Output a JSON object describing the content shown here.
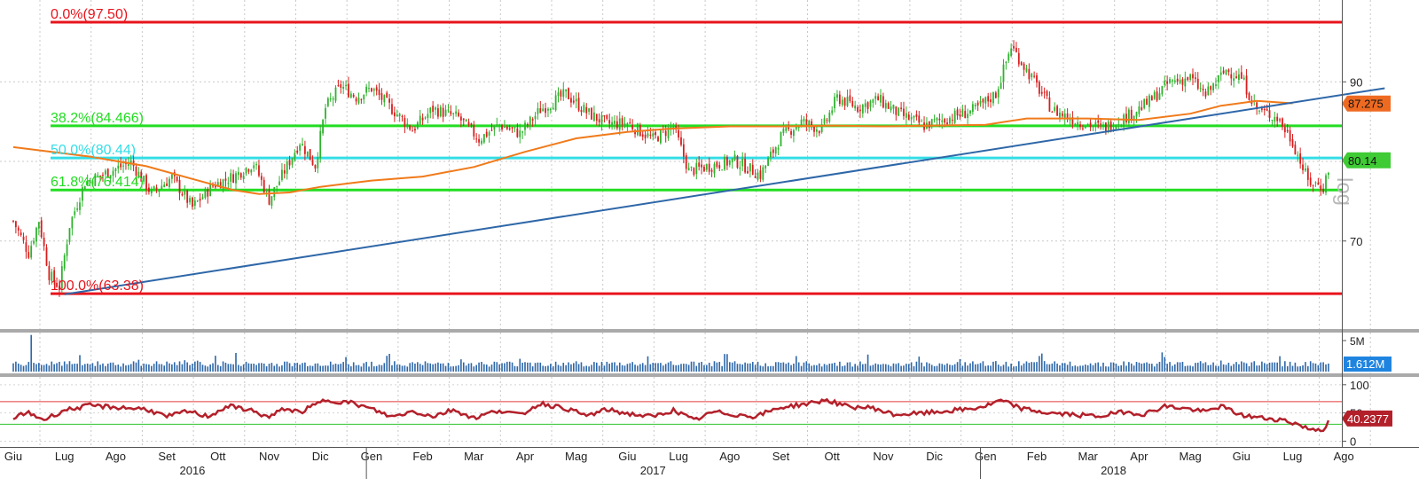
{
  "chart_data": {
    "type": "candlestick",
    "watermark": "log",
    "x_axis": {
      "months": [
        "Giu",
        "Lug",
        "Ago",
        "Set",
        "Ott",
        "Nov",
        "Dic",
        "Gen",
        "Feb",
        "Mar",
        "Apr",
        "Mag",
        "Giu",
        "Lug",
        "Ago",
        "Set",
        "Ott",
        "Nov",
        "Dic",
        "Gen",
        "Feb",
        "Mar",
        "Apr",
        "Mag",
        "Giu",
        "Lug",
        "Ago"
      ],
      "years": [
        "2016",
        "2017",
        "2018"
      ]
    },
    "price_panel": {
      "y_ticks": [
        "90",
        "80",
        "70"
      ],
      "ylim": [
        60.5,
        98.5
      ],
      "fibonacci": [
        {
          "label": "0.0%(97.50)",
          "value": 97.5,
          "color": "#e8141c"
        },
        {
          "label": "38.2%(84.466)",
          "value": 84.466,
          "color": "#22dd22"
        },
        {
          "label": "50.0%(80.44)",
          "value": 80.44,
          "color": "#33dde6"
        },
        {
          "label": "61.8%(76.414)",
          "value": 76.414,
          "color": "#22dd22"
        },
        {
          "label": "100.0%(63.38)",
          "value": 63.38,
          "color": "#e8141c"
        }
      ],
      "trendline": {
        "start": {
          "month_index": 1.0,
          "value": 63.3
        },
        "end": {
          "month_index": 26.8,
          "value": 89.2
        },
        "color": "#2e67a8"
      },
      "moving_average_color": "#f07a1a",
      "moving_average": [
        {
          "m": 0.0,
          "v": 81.8
        },
        {
          "m": 1.5,
          "v": 80.6
        },
        {
          "m": 2.6,
          "v": 79.4
        },
        {
          "m": 3.5,
          "v": 77.8
        },
        {
          "m": 4.3,
          "v": 76.4
        },
        {
          "m": 4.8,
          "v": 75.9
        },
        {
          "m": 5.4,
          "v": 76.1
        },
        {
          "m": 6.0,
          "v": 76.8
        },
        {
          "m": 7.0,
          "v": 77.6
        },
        {
          "m": 8.0,
          "v": 78.1
        },
        {
          "m": 9.0,
          "v": 79.3
        },
        {
          "m": 10.0,
          "v": 81.2
        },
        {
          "m": 11.0,
          "v": 82.9
        },
        {
          "m": 12.0,
          "v": 83.7
        },
        {
          "m": 12.8,
          "v": 84.1
        },
        {
          "m": 14.0,
          "v": 84.4
        },
        {
          "m": 15.0,
          "v": 84.4
        },
        {
          "m": 16.0,
          "v": 84.5
        },
        {
          "m": 17.0,
          "v": 84.4
        },
        {
          "m": 18.0,
          "v": 84.5
        },
        {
          "m": 19.0,
          "v": 84.6
        },
        {
          "m": 19.8,
          "v": 85.4
        },
        {
          "m": 21.0,
          "v": 85.4
        },
        {
          "m": 22.0,
          "v": 85.2
        },
        {
          "m": 23.0,
          "v": 86.0
        },
        {
          "m": 23.6,
          "v": 87.0
        },
        {
          "m": 24.3,
          "v": 87.6
        },
        {
          "m": 25.0,
          "v": 87.3
        }
      ],
      "price_path": [
        {
          "m": 0.0,
          "v": 72.5
        },
        {
          "m": 0.3,
          "v": 68.5
        },
        {
          "m": 0.5,
          "v": 72.6
        },
        {
          "m": 0.7,
          "v": 65.8
        },
        {
          "m": 0.9,
          "v": 64.2
        },
        {
          "m": 1.1,
          "v": 72.0
        },
        {
          "m": 1.4,
          "v": 77.4
        },
        {
          "m": 1.8,
          "v": 78.5
        },
        {
          "m": 2.3,
          "v": 79.9
        },
        {
          "m": 2.7,
          "v": 76.0
        },
        {
          "m": 3.1,
          "v": 78.0
        },
        {
          "m": 3.5,
          "v": 74.2
        },
        {
          "m": 3.9,
          "v": 77.0
        },
        {
          "m": 4.3,
          "v": 78.1
        },
        {
          "m": 4.7,
          "v": 79.8
        },
        {
          "m": 5.0,
          "v": 75.2
        },
        {
          "m": 5.3,
          "v": 78.8
        },
        {
          "m": 5.6,
          "v": 82.5
        },
        {
          "m": 5.9,
          "v": 79.5
        },
        {
          "m": 6.1,
          "v": 86.7
        },
        {
          "m": 6.4,
          "v": 89.5
        },
        {
          "m": 6.7,
          "v": 88.1
        },
        {
          "m": 7.0,
          "v": 89.2
        },
        {
          "m": 7.4,
          "v": 86.6
        },
        {
          "m": 7.8,
          "v": 84.0
        },
        {
          "m": 8.2,
          "v": 86.6
        },
        {
          "m": 8.7,
          "v": 85.5
        },
        {
          "m": 9.1,
          "v": 82.8
        },
        {
          "m": 9.5,
          "v": 84.6
        },
        {
          "m": 9.9,
          "v": 83.5
        },
        {
          "m": 10.3,
          "v": 86.5
        },
        {
          "m": 10.8,
          "v": 88.5
        },
        {
          "m": 11.2,
          "v": 86.2
        },
        {
          "m": 11.6,
          "v": 84.7
        },
        {
          "m": 12.0,
          "v": 84.8
        },
        {
          "m": 12.5,
          "v": 82.8
        },
        {
          "m": 12.9,
          "v": 84.4
        },
        {
          "m": 13.2,
          "v": 78.8
        },
        {
          "m": 13.6,
          "v": 79.4
        },
        {
          "m": 14.1,
          "v": 80.1
        },
        {
          "m": 14.6,
          "v": 78.3
        },
        {
          "m": 15.0,
          "v": 83.1
        },
        {
          "m": 15.4,
          "v": 85.0
        },
        {
          "m": 15.8,
          "v": 84.0
        },
        {
          "m": 16.1,
          "v": 88.0
        },
        {
          "m": 16.5,
          "v": 86.8
        },
        {
          "m": 16.9,
          "v": 87.8
        },
        {
          "m": 17.3,
          "v": 86.0
        },
        {
          "m": 17.8,
          "v": 84.5
        },
        {
          "m": 18.3,
          "v": 85.5
        },
        {
          "m": 18.8,
          "v": 86.5
        },
        {
          "m": 19.2,
          "v": 88.5
        },
        {
          "m": 19.5,
          "v": 94.5
        },
        {
          "m": 19.9,
          "v": 90.5
        },
        {
          "m": 20.3,
          "v": 86.5
        },
        {
          "m": 20.8,
          "v": 85.0
        },
        {
          "m": 21.3,
          "v": 84.2
        },
        {
          "m": 21.8,
          "v": 85.8
        },
        {
          "m": 22.2,
          "v": 87.5
        },
        {
          "m": 22.6,
          "v": 90.0
        },
        {
          "m": 23.0,
          "v": 90.5
        },
        {
          "m": 23.3,
          "v": 88.3
        },
        {
          "m": 23.7,
          "v": 91.5
        },
        {
          "m": 24.0,
          "v": 90.5
        },
        {
          "m": 24.3,
          "v": 86.5
        },
        {
          "m": 24.7,
          "v": 85.5
        },
        {
          "m": 25.0,
          "v": 82.5
        },
        {
          "m": 25.3,
          "v": 77.5
        },
        {
          "m": 25.6,
          "v": 76.8
        },
        {
          "m": 25.75,
          "v": 80.1
        }
      ],
      "labels": [
        {
          "text": "87.275",
          "value": 87.275,
          "color": "#ee6a21"
        },
        {
          "text": "80.14",
          "value": 80.14,
          "color": "#3ecb34"
        }
      ]
    },
    "volume_panel": {
      "y_ticks": [
        "5M"
      ],
      "ylim": [
        0,
        6000000
      ],
      "last_label": {
        "text": "1.612M",
        "color": "#1f84e0"
      }
    },
    "rsi_panel": {
      "y_ticks": [
        "100",
        "50",
        "0"
      ],
      "ylim": [
        -4,
        106
      ],
      "overbought": 70,
      "oversold": 30,
      "line_color": "#b3202a",
      "rsi_path": [
        {
          "m": 0.0,
          "v": 42
        },
        {
          "m": 0.3,
          "v": 50
        },
        {
          "m": 0.6,
          "v": 38
        },
        {
          "m": 1.0,
          "v": 55
        },
        {
          "m": 1.5,
          "v": 63
        },
        {
          "m": 2.0,
          "v": 60
        },
        {
          "m": 2.6,
          "v": 57
        },
        {
          "m": 3.0,
          "v": 43
        },
        {
          "m": 3.4,
          "v": 53
        },
        {
          "m": 3.8,
          "v": 44
        },
        {
          "m": 4.2,
          "v": 62
        },
        {
          "m": 4.6,
          "v": 56
        },
        {
          "m": 5.0,
          "v": 42
        },
        {
          "m": 5.3,
          "v": 58
        },
        {
          "m": 5.6,
          "v": 51
        },
        {
          "m": 6.1,
          "v": 73
        },
        {
          "m": 6.6,
          "v": 68
        },
        {
          "m": 7.0,
          "v": 57
        },
        {
          "m": 7.4,
          "v": 43
        },
        {
          "m": 7.8,
          "v": 53
        },
        {
          "m": 8.2,
          "v": 44
        },
        {
          "m": 8.6,
          "v": 56
        },
        {
          "m": 9.0,
          "v": 41
        },
        {
          "m": 9.5,
          "v": 55
        },
        {
          "m": 9.9,
          "v": 46
        },
        {
          "m": 10.3,
          "v": 67
        },
        {
          "m": 10.8,
          "v": 58
        },
        {
          "m": 11.2,
          "v": 45
        },
        {
          "m": 11.6,
          "v": 56
        },
        {
          "m": 12.0,
          "v": 49
        },
        {
          "m": 12.5,
          "v": 43
        },
        {
          "m": 12.9,
          "v": 55
        },
        {
          "m": 13.3,
          "v": 37
        },
        {
          "m": 13.7,
          "v": 52
        },
        {
          "m": 14.1,
          "v": 47
        },
        {
          "m": 14.5,
          "v": 44
        },
        {
          "m": 15.0,
          "v": 60
        },
        {
          "m": 15.5,
          "v": 66
        },
        {
          "m": 15.9,
          "v": 73
        },
        {
          "m": 16.3,
          "v": 61
        },
        {
          "m": 16.8,
          "v": 59
        },
        {
          "m": 17.2,
          "v": 47
        },
        {
          "m": 17.7,
          "v": 49
        },
        {
          "m": 18.2,
          "v": 53
        },
        {
          "m": 18.7,
          "v": 57
        },
        {
          "m": 19.0,
          "v": 62
        },
        {
          "m": 19.3,
          "v": 72
        },
        {
          "m": 19.7,
          "v": 58
        },
        {
          "m": 20.2,
          "v": 50
        },
        {
          "m": 20.7,
          "v": 47
        },
        {
          "m": 21.2,
          "v": 44
        },
        {
          "m": 21.7,
          "v": 52
        },
        {
          "m": 22.1,
          "v": 48
        },
        {
          "m": 22.5,
          "v": 62
        },
        {
          "m": 22.9,
          "v": 58
        },
        {
          "m": 23.3,
          "v": 52
        },
        {
          "m": 23.6,
          "v": 62
        },
        {
          "m": 24.0,
          "v": 46
        },
        {
          "m": 24.4,
          "v": 41
        },
        {
          "m": 24.8,
          "v": 38
        },
        {
          "m": 25.1,
          "v": 30
        },
        {
          "m": 25.3,
          "v": 22
        },
        {
          "m": 25.6,
          "v": 21
        },
        {
          "m": 25.75,
          "v": 40
        }
      ],
      "last_label": {
        "text": "40.2377",
        "color": "#b3202a"
      }
    }
  }
}
